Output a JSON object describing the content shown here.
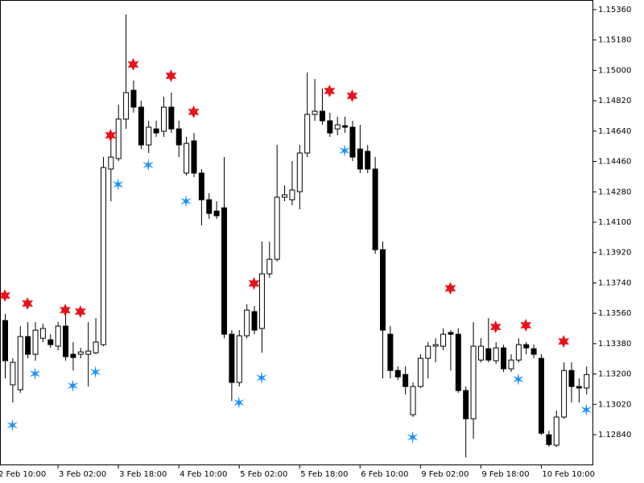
{
  "chart_data": {
    "type": "candlestick",
    "ylim": [
      1.12659,
      1.15417
    ],
    "yticks": [
      {
        "value": 1.1536,
        "label": "1.15360"
      },
      {
        "value": 1.1518,
        "label": "1.15180"
      },
      {
        "value": 1.15,
        "label": "1.15000"
      },
      {
        "value": 1.1482,
        "label": "1.14820"
      },
      {
        "value": 1.1464,
        "label": "1.14640"
      },
      {
        "value": 1.1446,
        "label": "1.14460"
      },
      {
        "value": 1.1428,
        "label": "1.14280"
      },
      {
        "value": 1.141,
        "label": "1.14100"
      },
      {
        "value": 1.1392,
        "label": "1.13920"
      },
      {
        "value": 1.1374,
        "label": "1.13740"
      },
      {
        "value": 1.1356,
        "label": "1.13560"
      },
      {
        "value": 1.1338,
        "label": "1.13380"
      },
      {
        "value": 1.132,
        "label": "1.13200"
      },
      {
        "value": 1.1302,
        "label": "1.13020"
      },
      {
        "value": 1.1284,
        "label": "1.12840"
      }
    ],
    "categories": [
      "2 Feb 10:00",
      null,
      null,
      null,
      null,
      null,
      null,
      null,
      "3 Feb 02:00",
      null,
      null,
      null,
      null,
      null,
      null,
      null,
      "3 Feb 18:00",
      null,
      null,
      null,
      null,
      null,
      null,
      null,
      "4 Feb 10:00",
      null,
      null,
      null,
      null,
      null,
      null,
      null,
      "5 Feb 02:00",
      null,
      null,
      null,
      null,
      null,
      null,
      null,
      "5 Feb 18:00",
      null,
      null,
      null,
      null,
      null,
      null,
      null,
      "6 Feb 10:00",
      null,
      null,
      null,
      null,
      null,
      null,
      null,
      "9 Feb 02:00",
      null,
      null,
      null,
      null,
      null,
      null,
      null,
      "9 Feb 18:00",
      null,
      null,
      null,
      null,
      null,
      null,
      null,
      "10 Feb 10:00",
      null,
      null,
      null,
      null,
      null
    ],
    "open": [
      1.13517,
      1.13136,
      1.13107,
      1.13422,
      1.13317,
      1.13412,
      1.13403,
      1.13365,
      1.13484,
      1.13317,
      1.13317,
      1.13317,
      1.13326,
      1.13374,
      1.14415,
      1.14477,
      1.14711,
      1.14882,
      1.14782,
      1.14558,
      1.14653,
      1.14639,
      1.14782,
      1.14653,
      1.14391,
      1.14582,
      1.14391,
      1.14233,
      1.14166,
      1.14185,
      1.13436,
      1.1315,
      1.13427,
      1.1357,
      1.1347,
      1.13794,
      1.1388,
      1.14248,
      1.14233,
      1.14281,
      1.1451,
      1.14739,
      1.14758,
      1.14701,
      1.14653,
      1.14672,
      1.14663,
      1.14534,
      1.1452,
      1.14415,
      1.13937,
      1.13436,
      1.13221,
      1.13197,
      1.12959,
      1.13126,
      1.13293,
      1.13365,
      1.13365,
      1.13446,
      1.13436,
      1.13102,
      1.12935,
      1.13283,
      1.1335,
      1.13279,
      1.13355,
      1.13231,
      1.13283,
      1.13374,
      1.1335,
      1.13293,
      1.1284,
      1.12778,
      1.12945,
      1.13221,
      1.13126,
      1.13117
    ],
    "high": [
      1.13556,
      1.13293,
      1.13484,
      1.13508,
      1.13508,
      1.13498,
      1.13436,
      1.13508,
      1.13579,
      1.13389,
      1.13355,
      1.13508,
      1.13532,
      1.14486,
      1.14606,
      1.14797,
      1.15331,
      1.1494,
      1.1482,
      1.14701,
      1.14701,
      1.14844,
      1.14868,
      1.14701,
      1.14606,
      1.14629,
      1.14415,
      1.14272,
      1.14224,
      1.14486,
      1.1346,
      1.1346,
      1.13613,
      1.13603,
      1.13985,
      1.13985,
      1.14558,
      1.14319,
      1.14462,
      1.14558,
      1.14987,
      1.14949,
      1.14892,
      1.14749,
      1.14725,
      1.14725,
      1.14701,
      1.14677,
      1.14558,
      1.14486,
      1.13985,
      1.13484,
      1.13245,
      1.13245,
      1.1315,
      1.13317,
      1.13389,
      1.13412,
      1.1347,
      1.1346,
      1.1347,
      1.13126,
      1.13508,
      1.13412,
      1.13532,
      1.13389,
      1.13374,
      1.13317,
      1.13412,
      1.13389,
      1.13374,
      1.13317,
      1.12863,
      1.12983,
      1.13269,
      1.13269,
      1.13174,
      1.13245
    ],
    "low": [
      1.13174,
      1.13031,
      1.13088,
      1.13293,
      1.13279,
      1.13389,
      1.13355,
      1.13341,
      1.13279,
      1.13221,
      1.13293,
      1.13126,
      1.13317,
      1.13365,
      1.14224,
      1.14462,
      1.14653,
      1.14749,
      1.14534,
      1.1451,
      1.14606,
      1.14606,
      1.14629,
      1.14486,
      1.14376,
      1.14367,
      1.14081,
      1.14119,
      1.14119,
      1.13412,
      1.1304,
      1.13126,
      1.13412,
      1.13436,
      1.13326,
      1.1377,
      1.13866,
      1.14224,
      1.142,
      1.14176,
      1.14486,
      1.14701,
      1.14677,
      1.14606,
      1.14615,
      1.14629,
      1.14462,
      1.14391,
      1.14391,
      1.13913,
      1.13174,
      1.13174,
      1.13164,
      1.13079,
      1.12945,
      1.13117,
      1.13174,
      1.13269,
      1.13341,
      1.13221,
      1.13088,
      1.12706,
      1.12816,
      1.13269,
      1.13269,
      1.1326,
      1.13212,
      1.13212,
      1.13269,
      1.13317,
      1.13293,
      1.1284,
      1.12768,
      1.12768,
      1.12935,
      1.13031,
      1.13031,
      1.13079
    ],
    "close": [
      1.13279,
      1.13269,
      1.13422,
      1.13317,
      1.1346,
      1.1347,
      1.13374,
      1.13484,
      1.13303,
      1.13298,
      1.13331,
      1.13336,
      1.13389,
      1.14424,
      1.14486,
      1.14711,
      1.14868,
      1.14782,
      1.14558,
      1.14663,
      1.14629,
      1.14782,
      1.14653,
      1.14558,
      1.14567,
      1.14391,
      1.14233,
      1.14152,
      1.14138,
      1.13436,
      1.1315,
      1.13427,
      1.13579,
      1.1346,
      1.13794,
      1.1388,
      1.14248,
      1.14262,
      1.14291,
      1.1451,
      1.14739,
      1.14758,
      1.14701,
      1.14629,
      1.14677,
      1.14663,
      1.14486,
      1.14415,
      1.14415,
      1.13937,
      1.1346,
      1.13221,
      1.13183,
      1.13126,
      1.13126,
      1.13293,
      1.13365,
      1.13374,
      1.13436,
      1.13436,
      1.13102,
      1.12935,
      1.13365,
      1.13365,
      1.13283,
      1.13355,
      1.13231,
      1.13283,
      1.13374,
      1.13355,
      1.13317,
      1.12849,
      1.12782,
      1.12945,
      1.13221,
      1.13126,
      1.13117,
      1.13197
    ],
    "signals": [
      {
        "color": "#e8101a",
        "shape": "star",
        "x": [
          0,
          3,
          8,
          10,
          14,
          17,
          22,
          25,
          33,
          43,
          46,
          59,
          65,
          69,
          74
        ],
        "values": [
          1.13665,
          1.13618,
          1.13579,
          1.1357,
          1.14615,
          1.15035,
          1.14968,
          1.14754,
          1.13737,
          1.14878,
          1.14849,
          1.13708,
          1.13479,
          1.13489,
          1.13393
        ]
      },
      {
        "color": "#1e90ff",
        "shape": "asterisk",
        "x": [
          1,
          4,
          9,
          12,
          15,
          19,
          24,
          31,
          34,
          45,
          54,
          68,
          77
        ],
        "values": [
          1.12897,
          1.13202,
          1.13131,
          1.13212,
          1.14324,
          1.14439,
          1.14224,
          1.13031,
          1.13178,
          1.14524,
          1.12825,
          1.13169,
          1.12988
        ]
      }
    ]
  }
}
